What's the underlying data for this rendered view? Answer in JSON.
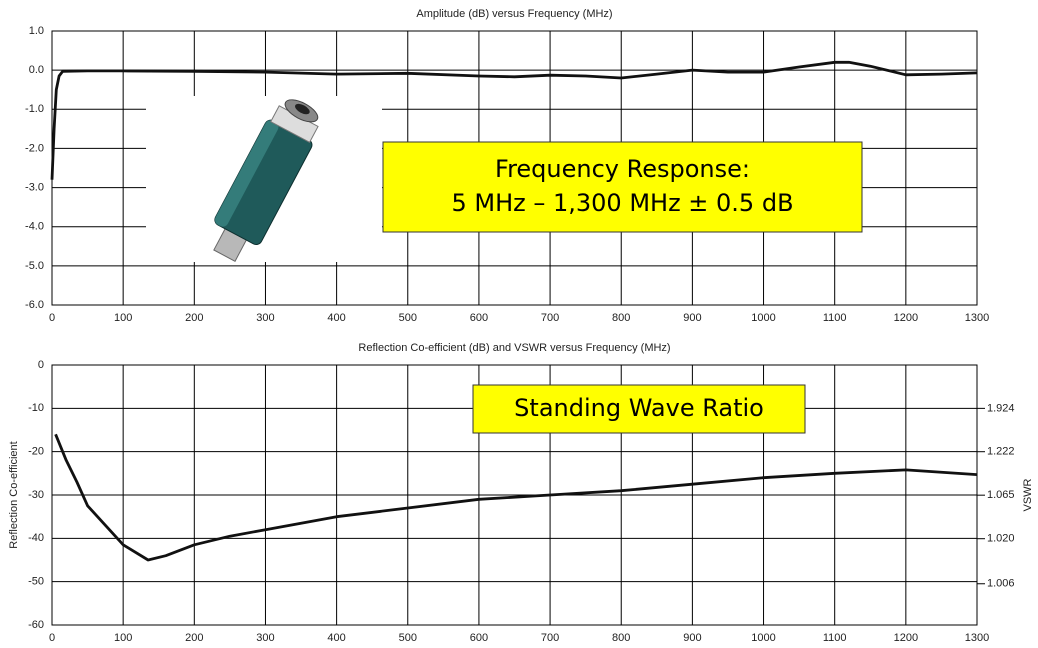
{
  "chart_data": [
    {
      "type": "line",
      "title": "Amplitude (dB) versus Frequency (MHz)",
      "x": [
        0,
        3,
        6,
        10,
        15,
        50,
        100,
        200,
        300,
        400,
        500,
        600,
        650,
        700,
        750,
        800,
        850,
        900,
        950,
        1000,
        1050,
        1100,
        1120,
        1150,
        1200,
        1250,
        1300
      ],
      "values": [
        -2.8,
        -1.5,
        -0.5,
        -0.15,
        -0.03,
        -0.02,
        -0.02,
        -0.03,
        -0.05,
        -0.1,
        -0.08,
        -0.15,
        -0.17,
        -0.13,
        -0.15,
        -0.2,
        -0.1,
        0,
        -0.05,
        -0.05,
        0.08,
        0.2,
        0.2,
        0.1,
        -0.12,
        -0.1,
        -0.07
      ],
      "color": "#111111",
      "xlim": [
        0,
        1300
      ],
      "xticks": [
        0,
        100,
        200,
        300,
        400,
        500,
        600,
        700,
        800,
        900,
        1000,
        1100,
        1200,
        1300
      ],
      "ylim": [
        -6,
        1
      ],
      "yticks": [
        {
          "value": 1,
          "label": "1.0"
        },
        {
          "value": 0,
          "label": "0.0"
        },
        {
          "value": -1,
          "label": "-1.0"
        },
        {
          "value": -2,
          "label": "-2.0"
        },
        {
          "value": -3,
          "label": "-3.0"
        },
        {
          "value": -4,
          "label": "-4.0"
        },
        {
          "value": -5,
          "label": "-5.0"
        },
        {
          "value": -6,
          "label": "-6.0"
        }
      ],
      "grid": true,
      "annotation": [
        "Frequency Response:",
        "5 MHz – 1,300 MHz ± 0.5 dB"
      ]
    },
    {
      "type": "line",
      "title": "Reflection Co-efficient (dB) and VSWR versus Frequency (MHz)",
      "y_label": "Reflection Co-efficient",
      "y2_label": "VSWR",
      "x": [
        5,
        20,
        35,
        50,
        75,
        100,
        135,
        160,
        200,
        250,
        300,
        400,
        500,
        600,
        700,
        800,
        900,
        1000,
        1100,
        1200,
        1300
      ],
      "values": [
        -16,
        -22,
        -27,
        -32.5,
        -37,
        -41.5,
        -45,
        -44,
        -41.5,
        -39.5,
        -38,
        -35,
        -33,
        -31,
        -30,
        -29,
        -27.5,
        -26,
        -25,
        -24.2,
        -25.3
      ],
      "color": "#111111",
      "xlim": [
        0,
        1300
      ],
      "xticks": [
        0,
        100,
        200,
        300,
        400,
        500,
        600,
        700,
        800,
        900,
        1000,
        1100,
        1200,
        1300
      ],
      "ylim": [
        -60,
        0
      ],
      "yticks": [
        0,
        -10,
        -20,
        -30,
        -40,
        -50,
        -60
      ],
      "y2scale": "vswr",
      "y2ticks": [
        1.924,
        1.222,
        1.065,
        {
          "value": 1.02,
          "label": "1.020"
        },
        1.006
      ],
      "grid": true,
      "annotation": [
        "Standing Wave Ratio"
      ]
    }
  ]
}
